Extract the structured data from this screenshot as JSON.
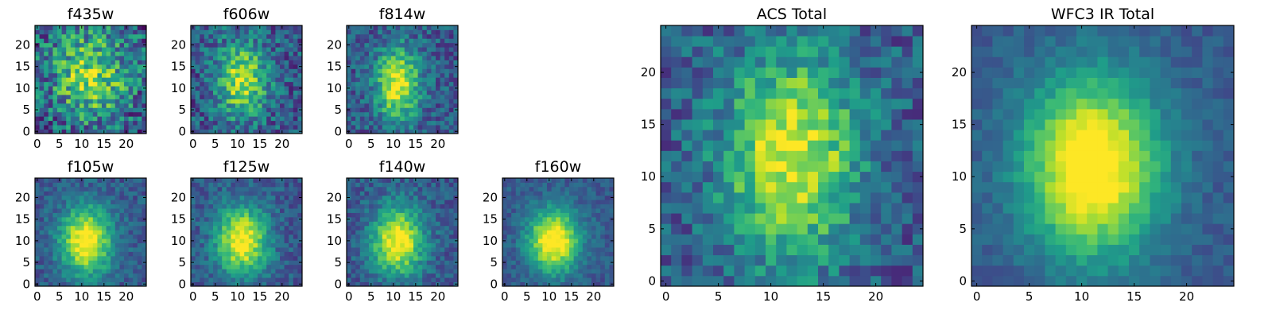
{
  "chart_data": {
    "type": "heatmap",
    "colormap": "viridis",
    "grid_size": 25,
    "panels": [
      {
        "id": "f435w",
        "title": "f435w",
        "xticks": [
          0,
          5,
          10,
          15,
          20
        ],
        "yticks": [
          0,
          5,
          10,
          15,
          20
        ],
        "xlim": [
          -0.5,
          24.5
        ],
        "ylim": [
          -0.5,
          24.5
        ],
        "noise": 0.3,
        "peak": [
          12,
          13
        ],
        "sigma": [
          6,
          7
        ],
        "bright": 0.55,
        "seed": 11
      },
      {
        "id": "f606w",
        "title": "f606w",
        "xticks": [
          0,
          5,
          10,
          15,
          20
        ],
        "yticks": [
          0,
          5,
          10,
          15,
          20
        ],
        "xlim": [
          -0.5,
          24.5
        ],
        "ylim": [
          -0.5,
          24.5
        ],
        "noise": 0.22,
        "peak": [
          11,
          12
        ],
        "sigma": [
          4,
          6
        ],
        "bright": 0.62,
        "seed": 23
      },
      {
        "id": "f814w",
        "title": "f814w",
        "xticks": [
          0,
          5,
          10,
          15,
          20
        ],
        "yticks": [
          0,
          5,
          10,
          15,
          20
        ],
        "xlim": [
          -0.5,
          24.5
        ],
        "ylim": [
          -0.5,
          24.5
        ],
        "noise": 0.18,
        "peak": [
          11,
          11
        ],
        "sigma": [
          3.5,
          6
        ],
        "bright": 0.68,
        "seed": 37
      },
      {
        "id": "f105w",
        "title": "f105w",
        "xticks": [
          0,
          5,
          10,
          15,
          20
        ],
        "yticks": [
          0,
          5,
          10,
          15,
          20
        ],
        "xlim": [
          -0.5,
          24.5
        ],
        "ylim": [
          -0.5,
          24.5
        ],
        "noise": 0.12,
        "peak": [
          11,
          10
        ],
        "sigma": [
          4,
          5.5
        ],
        "bright": 0.78,
        "seed": 41
      },
      {
        "id": "f125w",
        "title": "f125w",
        "xticks": [
          0,
          5,
          10,
          15,
          20
        ],
        "yticks": [
          0,
          5,
          10,
          15,
          20
        ],
        "xlim": [
          -0.5,
          24.5
        ],
        "ylim": [
          -0.5,
          24.5
        ],
        "noise": 0.13,
        "peak": [
          11,
          10
        ],
        "sigma": [
          4,
          5.5
        ],
        "bright": 0.76,
        "seed": 53
      },
      {
        "id": "f140w",
        "title": "f140w",
        "xticks": [
          0,
          5,
          10,
          15,
          20
        ],
        "yticks": [
          0,
          5,
          10,
          15,
          20
        ],
        "xlim": [
          -0.5,
          24.5
        ],
        "ylim": [
          -0.5,
          24.5
        ],
        "noise": 0.13,
        "peak": [
          11,
          10
        ],
        "sigma": [
          4,
          5.5
        ],
        "bright": 0.76,
        "seed": 67
      },
      {
        "id": "f160w",
        "title": "f160w",
        "xticks": [
          0,
          5,
          10,
          15,
          20
        ],
        "yticks": [
          0,
          5,
          10,
          15,
          20
        ],
        "xlim": [
          -0.5,
          24.5
        ],
        "ylim": [
          -0.5,
          24.5
        ],
        "noise": 0.1,
        "peak": [
          11,
          10
        ],
        "sigma": [
          4,
          5
        ],
        "bright": 0.82,
        "seed": 79
      },
      {
        "id": "acs-total",
        "title": "ACS Total",
        "xticks": [
          0,
          5,
          10,
          15,
          20
        ],
        "yticks": [
          0,
          5,
          10,
          15,
          20
        ],
        "xlim": [
          -0.5,
          24.5
        ],
        "ylim": [
          -0.5,
          24.5
        ],
        "noise": 0.18,
        "peak": [
          12,
          12
        ],
        "sigma": [
          4.5,
          7
        ],
        "bright": 0.7,
        "seed": 83
      },
      {
        "id": "wfc3-ir-total",
        "title": "WFC3 IR Total",
        "xticks": [
          0,
          5,
          10,
          15,
          20
        ],
        "yticks": [
          0,
          5,
          10,
          15,
          20
        ],
        "xlim": [
          -0.5,
          24.5
        ],
        "ylim": [
          -0.5,
          24.5
        ],
        "noise": 0.07,
        "peak": [
          11,
          11
        ],
        "sigma": [
          4.5,
          6
        ],
        "bright": 0.85,
        "seed": 97
      }
    ]
  }
}
